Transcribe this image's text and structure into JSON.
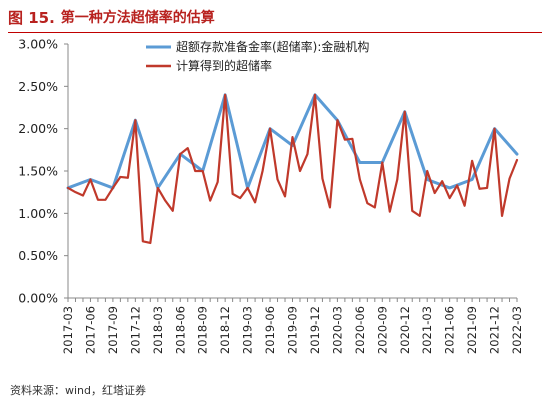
{
  "figure": {
    "label": "图 15.",
    "title": "第一种方法超储率的估算",
    "source": "资料来源：wind，红塔证券"
  },
  "chart_data": {
    "type": "line",
    "title": "",
    "xlabel": "",
    "ylabel": "",
    "ylim": [
      0,
      3
    ],
    "yticks": [
      "0.00%",
      "0.50%",
      "1.00%",
      "1.50%",
      "2.00%",
      "2.50%",
      "3.00%"
    ],
    "grid": false,
    "legend_position": "top-center",
    "x": [
      "2017-03",
      "2017-04",
      "2017-05",
      "2017-06",
      "2017-07",
      "2017-08",
      "2017-09",
      "2017-10",
      "2017-11",
      "2017-12",
      "2018-01",
      "2018-02",
      "2018-03",
      "2018-04",
      "2018-05",
      "2018-06",
      "2018-07",
      "2018-08",
      "2018-09",
      "2018-10",
      "2018-11",
      "2018-12",
      "2019-01",
      "2019-02",
      "2019-03",
      "2019-04",
      "2019-05",
      "2019-06",
      "2019-07",
      "2019-08",
      "2019-09",
      "2019-10",
      "2019-11",
      "2019-12",
      "2020-01",
      "2020-02",
      "2020-03",
      "2020-04",
      "2020-05",
      "2020-06",
      "2020-07",
      "2020-08",
      "2020-09",
      "2020-10",
      "2020-11",
      "2020-12",
      "2021-01",
      "2021-02",
      "2021-03",
      "2021-04",
      "2021-05",
      "2021-06",
      "2021-07",
      "2021-08",
      "2021-09",
      "2021-10",
      "2021-11",
      "2021-12",
      "2022-01",
      "2022-02",
      "2022-03"
    ],
    "xtick_labels": [
      "2017-03",
      "2017-06",
      "2017-09",
      "2017-12",
      "2018-03",
      "2018-06",
      "2018-09",
      "2018-12",
      "2019-03",
      "2019-06",
      "2019-09",
      "2019-12",
      "2020-03",
      "2020-06",
      "2020-09",
      "2020-12",
      "2021-03",
      "2021-06",
      "2021-09",
      "2021-12",
      "2022-03"
    ],
    "series": [
      {
        "name": "超额存款准备金率(超储率):金融机构",
        "color": "#5b9bd5",
        "stroke_width": 3,
        "points": [
          [
            "2017-03",
            1.3
          ],
          [
            "2017-06",
            1.4
          ],
          [
            "2017-09",
            1.3
          ],
          [
            "2017-12",
            2.1
          ],
          [
            "2018-03",
            1.3
          ],
          [
            "2018-06",
            1.7
          ],
          [
            "2018-09",
            1.5
          ],
          [
            "2018-12",
            2.4
          ],
          [
            "2019-03",
            1.3
          ],
          [
            "2019-06",
            2.0
          ],
          [
            "2019-09",
            1.8
          ],
          [
            "2019-12",
            2.4
          ],
          [
            "2020-03",
            2.1
          ],
          [
            "2020-06",
            1.6
          ],
          [
            "2020-09",
            1.6
          ],
          [
            "2020-12",
            2.2
          ],
          [
            "2021-03",
            1.4
          ],
          [
            "2021-06",
            1.3
          ],
          [
            "2021-09",
            1.4
          ],
          [
            "2021-12",
            2.0
          ],
          [
            "2022-03",
            1.7
          ]
        ]
      },
      {
        "name": "计算得到的超储率",
        "color": "#c0392b",
        "stroke_width": 2.2,
        "values": [
          1.3,
          1.25,
          1.21,
          1.4,
          1.16,
          1.16,
          1.3,
          1.43,
          1.42,
          2.1,
          0.67,
          0.65,
          1.3,
          1.15,
          1.03,
          1.7,
          1.77,
          1.5,
          1.5,
          1.15,
          1.37,
          2.4,
          1.23,
          1.18,
          1.3,
          1.13,
          1.5,
          2.0,
          1.4,
          1.2,
          1.9,
          1.5,
          1.7,
          2.4,
          1.41,
          1.07,
          2.1,
          1.87,
          1.88,
          1.4,
          1.12,
          1.07,
          1.6,
          1.02,
          1.4,
          2.2,
          1.03,
          0.97,
          1.5,
          1.24,
          1.38,
          1.18,
          1.33,
          1.09,
          1.62,
          1.29,
          1.3,
          2.0,
          0.97,
          1.41,
          1.63
        ]
      }
    ]
  }
}
